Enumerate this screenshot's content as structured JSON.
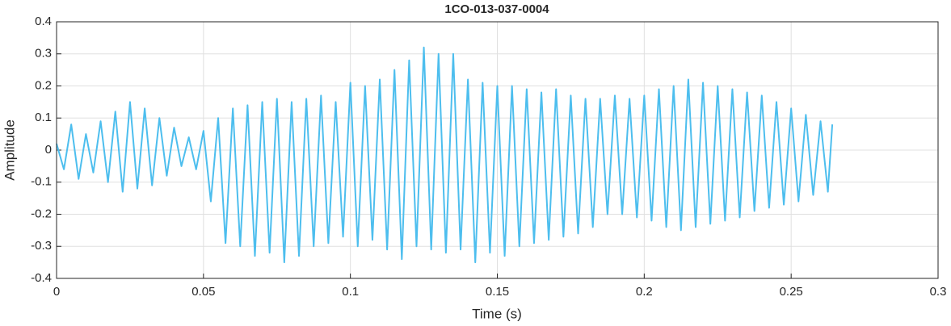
{
  "chart_data": {
    "type": "line",
    "title": "1CO-013-037-0004",
    "xlabel": "Time (s)",
    "ylabel": "Amplitude",
    "xlim": [
      0,
      0.3
    ],
    "ylim": [
      -0.4,
      0.4
    ],
    "xticks": [
      0,
      0.05,
      0.1,
      0.15,
      0.2,
      0.25,
      0.3
    ],
    "yticks": [
      -0.4,
      -0.3,
      -0.2,
      -0.1,
      0,
      0.1,
      0.2,
      0.3,
      0.4
    ],
    "grid": true,
    "x": [
      0,
      0.0025,
      0.005,
      0.0075,
      0.01,
      0.0125,
      0.015,
      0.0175,
      0.02,
      0.0225,
      0.025,
      0.0275,
      0.03,
      0.0325,
      0.035,
      0.0375,
      0.04,
      0.0425,
      0.045,
      0.0475,
      0.05,
      0.0525,
      0.055,
      0.0575,
      0.06,
      0.0625,
      0.065,
      0.0675,
      0.07,
      0.0725,
      0.075,
      0.0775,
      0.08,
      0.0825,
      0.085,
      0.0875,
      0.09,
      0.0925,
      0.095,
      0.0975,
      0.1,
      0.1025,
      0.105,
      0.1075,
      0.11,
      0.1125,
      0.115,
      0.1175,
      0.12,
      0.1225,
      0.125,
      0.1275,
      0.13,
      0.1325,
      0.135,
      0.1375,
      0.14,
      0.1425,
      0.145,
      0.1475,
      0.15,
      0.1525,
      0.155,
      0.1575,
      0.16,
      0.1625,
      0.165,
      0.1675,
      0.17,
      0.1725,
      0.175,
      0.1775,
      0.18,
      0.1825,
      0.185,
      0.1875,
      0.19,
      0.1925,
      0.195,
      0.1975,
      0.2,
      0.2025,
      0.205,
      0.2075,
      0.21,
      0.2125,
      0.215,
      0.2175,
      0.22,
      0.2225,
      0.225,
      0.2275,
      0.23,
      0.2325,
      0.235,
      0.2375,
      0.24,
      0.2425,
      0.245,
      0.2475,
      0.25,
      0.2525,
      0.255,
      0.2575,
      0.26,
      0.2625,
      0.264
    ],
    "series": [
      {
        "color": "#4DBEEE",
        "values": [
          0.02,
          -0.06,
          0.08,
          -0.09,
          0.05,
          -0.07,
          0.09,
          -0.1,
          0.12,
          -0.13,
          0.15,
          -0.12,
          0.13,
          -0.11,
          0.1,
          -0.08,
          0.07,
          -0.05,
          0.04,
          -0.06,
          0.06,
          -0.16,
          0.1,
          -0.29,
          0.13,
          -0.3,
          0.14,
          -0.33,
          0.15,
          -0.32,
          0.16,
          -0.35,
          0.15,
          -0.33,
          0.16,
          -0.3,
          0.17,
          -0.29,
          0.15,
          -0.27,
          0.21,
          -0.3,
          0.2,
          -0.28,
          0.22,
          -0.31,
          0.25,
          -0.34,
          0.28,
          -0.3,
          0.32,
          -0.31,
          0.3,
          -0.32,
          0.3,
          -0.31,
          0.22,
          -0.35,
          0.21,
          -0.32,
          0.2,
          -0.33,
          0.2,
          -0.3,
          0.19,
          -0.29,
          0.18,
          -0.28,
          0.19,
          -0.27,
          0.17,
          -0.26,
          0.16,
          -0.24,
          0.16,
          -0.2,
          0.17,
          -0.2,
          0.16,
          -0.21,
          0.17,
          -0.22,
          0.19,
          -0.24,
          0.2,
          -0.25,
          0.22,
          -0.24,
          0.21,
          -0.23,
          0.2,
          -0.22,
          0.19,
          -0.21,
          0.18,
          -0.19,
          0.17,
          -0.18,
          0.15,
          -0.17,
          0.13,
          -0.16,
          0.11,
          -0.14,
          0.09,
          -0.13,
          0.08
        ]
      }
    ]
  }
}
